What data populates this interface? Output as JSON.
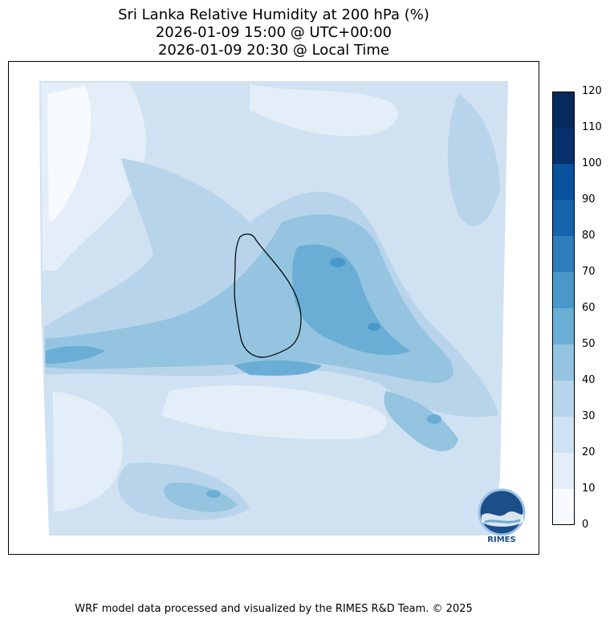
{
  "title": {
    "line1": "Sri Lanka Relative Humidity at 200 hPa (%)",
    "line2": "2026-01-09 15:00 @ UTC+00:00",
    "line3": "2026-01-09 20:30 @ Local Time"
  },
  "colorbar": {
    "ticks": [
      "0",
      "10",
      "20",
      "30",
      "40",
      "50",
      "60",
      "70",
      "80",
      "90",
      "100",
      "110",
      "120"
    ],
    "colors": [
      "#f7fbff",
      "#e3eef9",
      "#d0e1f2",
      "#b7d4ea",
      "#94c4df",
      "#6aaed6",
      "#4a98c9",
      "#2e7ebc",
      "#1764ab",
      "#08519c",
      "#08306b",
      "#072a5e"
    ]
  },
  "map": {
    "variable": "Relative Humidity",
    "level": "200 hPa",
    "unit": "%"
  },
  "logo": {
    "text": "RIMES"
  },
  "credit": "WRF model data processed and visualized by the RIMES R&D Team. © 2025"
}
